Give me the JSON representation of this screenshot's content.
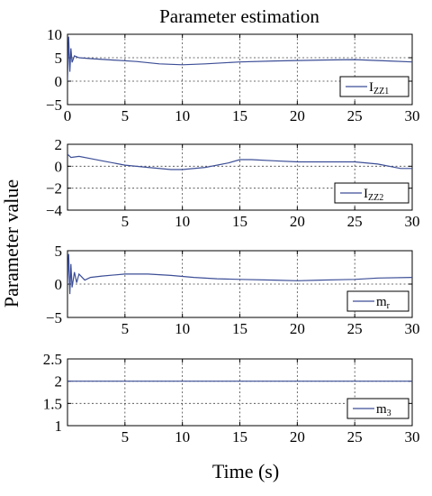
{
  "figure": {
    "title": "Parameter estimation",
    "ylabel": "Parameter value",
    "xlabel": "Time (s)"
  },
  "chart_data": [
    {
      "type": "line",
      "title": "Parameter estimation",
      "xlabel": "",
      "ylabel": "Parameter value",
      "xlim": [
        0,
        30
      ],
      "ylim": [
        -5,
        10
      ],
      "grid": true,
      "legend_position": "right",
      "x_ticks": [
        "0",
        "5",
        "10",
        "15",
        "20",
        "25",
        "30"
      ],
      "y_ticks": [
        "10",
        "5",
        "0",
        "−5"
      ],
      "series": [
        {
          "legend_base": "I",
          "legend_sub": "ZZ1",
          "color": "#3c4e96",
          "x": [
            0,
            0.1,
            0.2,
            0.3,
            0.4,
            0.6,
            1,
            2,
            4,
            6,
            8,
            10,
            12,
            15,
            18,
            20,
            22,
            25,
            28,
            30
          ],
          "y": [
            0,
            9.5,
            2,
            7,
            4,
            5.4,
            5,
            4.8,
            4.5,
            4.2,
            3.7,
            3.5,
            3.7,
            4.1,
            4.3,
            4.4,
            4.5,
            4.6,
            4.3,
            4.1
          ]
        }
      ]
    },
    {
      "type": "line",
      "xlabel": "",
      "ylabel": "",
      "xlim": [
        0,
        30
      ],
      "ylim": [
        -4,
        2
      ],
      "grid": true,
      "legend_position": "right",
      "x_ticks": [
        "",
        "5",
        "10",
        "15",
        "20",
        "25",
        "30"
      ],
      "y_ticks": [
        "2",
        "0",
        "−2",
        "−4"
      ],
      "series": [
        {
          "legend_base": "I",
          "legend_sub": "ZZ2",
          "color": "#3c4e96",
          "x": [
            0,
            0.3,
            1,
            2,
            3,
            5,
            7,
            9,
            10,
            12,
            14,
            15,
            16,
            18,
            20,
            22,
            25,
            27,
            29,
            30
          ],
          "y": [
            1.1,
            0.8,
            0.9,
            0.7,
            0.5,
            0.1,
            -0.1,
            -0.3,
            -0.3,
            -0.1,
            0.3,
            0.6,
            0.6,
            0.5,
            0.4,
            0.4,
            0.4,
            0.2,
            -0.2,
            -0.2
          ]
        }
      ]
    },
    {
      "type": "line",
      "xlabel": "",
      "ylabel": "",
      "xlim": [
        0,
        30
      ],
      "ylim": [
        -5,
        5
      ],
      "grid": true,
      "legend_position": "right",
      "x_ticks": [
        "",
        "5",
        "10",
        "15",
        "20",
        "25",
        "30"
      ],
      "y_ticks": [
        "5",
        "0",
        "−5"
      ],
      "series": [
        {
          "legend_base": "m",
          "legend_sub": "r",
          "color": "#3c4e96",
          "x": [
            0,
            0.1,
            0.2,
            0.3,
            0.4,
            0.6,
            0.8,
            1,
            1.5,
            2,
            3,
            5,
            7,
            9,
            11,
            13,
            15,
            18,
            20,
            22,
            25,
            27,
            30
          ],
          "y": [
            0,
            4.5,
            -1.5,
            3,
            -0.5,
            1.8,
            0.2,
            1.5,
            0.6,
            1.0,
            1.2,
            1.5,
            1.5,
            1.3,
            1.0,
            0.8,
            0.7,
            0.6,
            0.5,
            0.6,
            0.7,
            0.9,
            1.0
          ]
        }
      ]
    },
    {
      "type": "line",
      "xlabel": "Time (s)",
      "ylabel": "",
      "xlim": [
        0,
        30
      ],
      "ylim": [
        1,
        2.5
      ],
      "grid": true,
      "legend_position": "right",
      "x_ticks": [
        "",
        "5",
        "10",
        "15",
        "20",
        "25",
        "30"
      ],
      "y_ticks": [
        "2.5",
        "2",
        "1.5",
        "1"
      ],
      "series": [
        {
          "legend_base": "m",
          "legend_sub": "3",
          "color": "#3c4e96",
          "x": [
            0,
            5,
            10,
            15,
            20,
            25,
            30
          ],
          "y": [
            2,
            2,
            2,
            2,
            2,
            2,
            2
          ]
        }
      ]
    }
  ]
}
